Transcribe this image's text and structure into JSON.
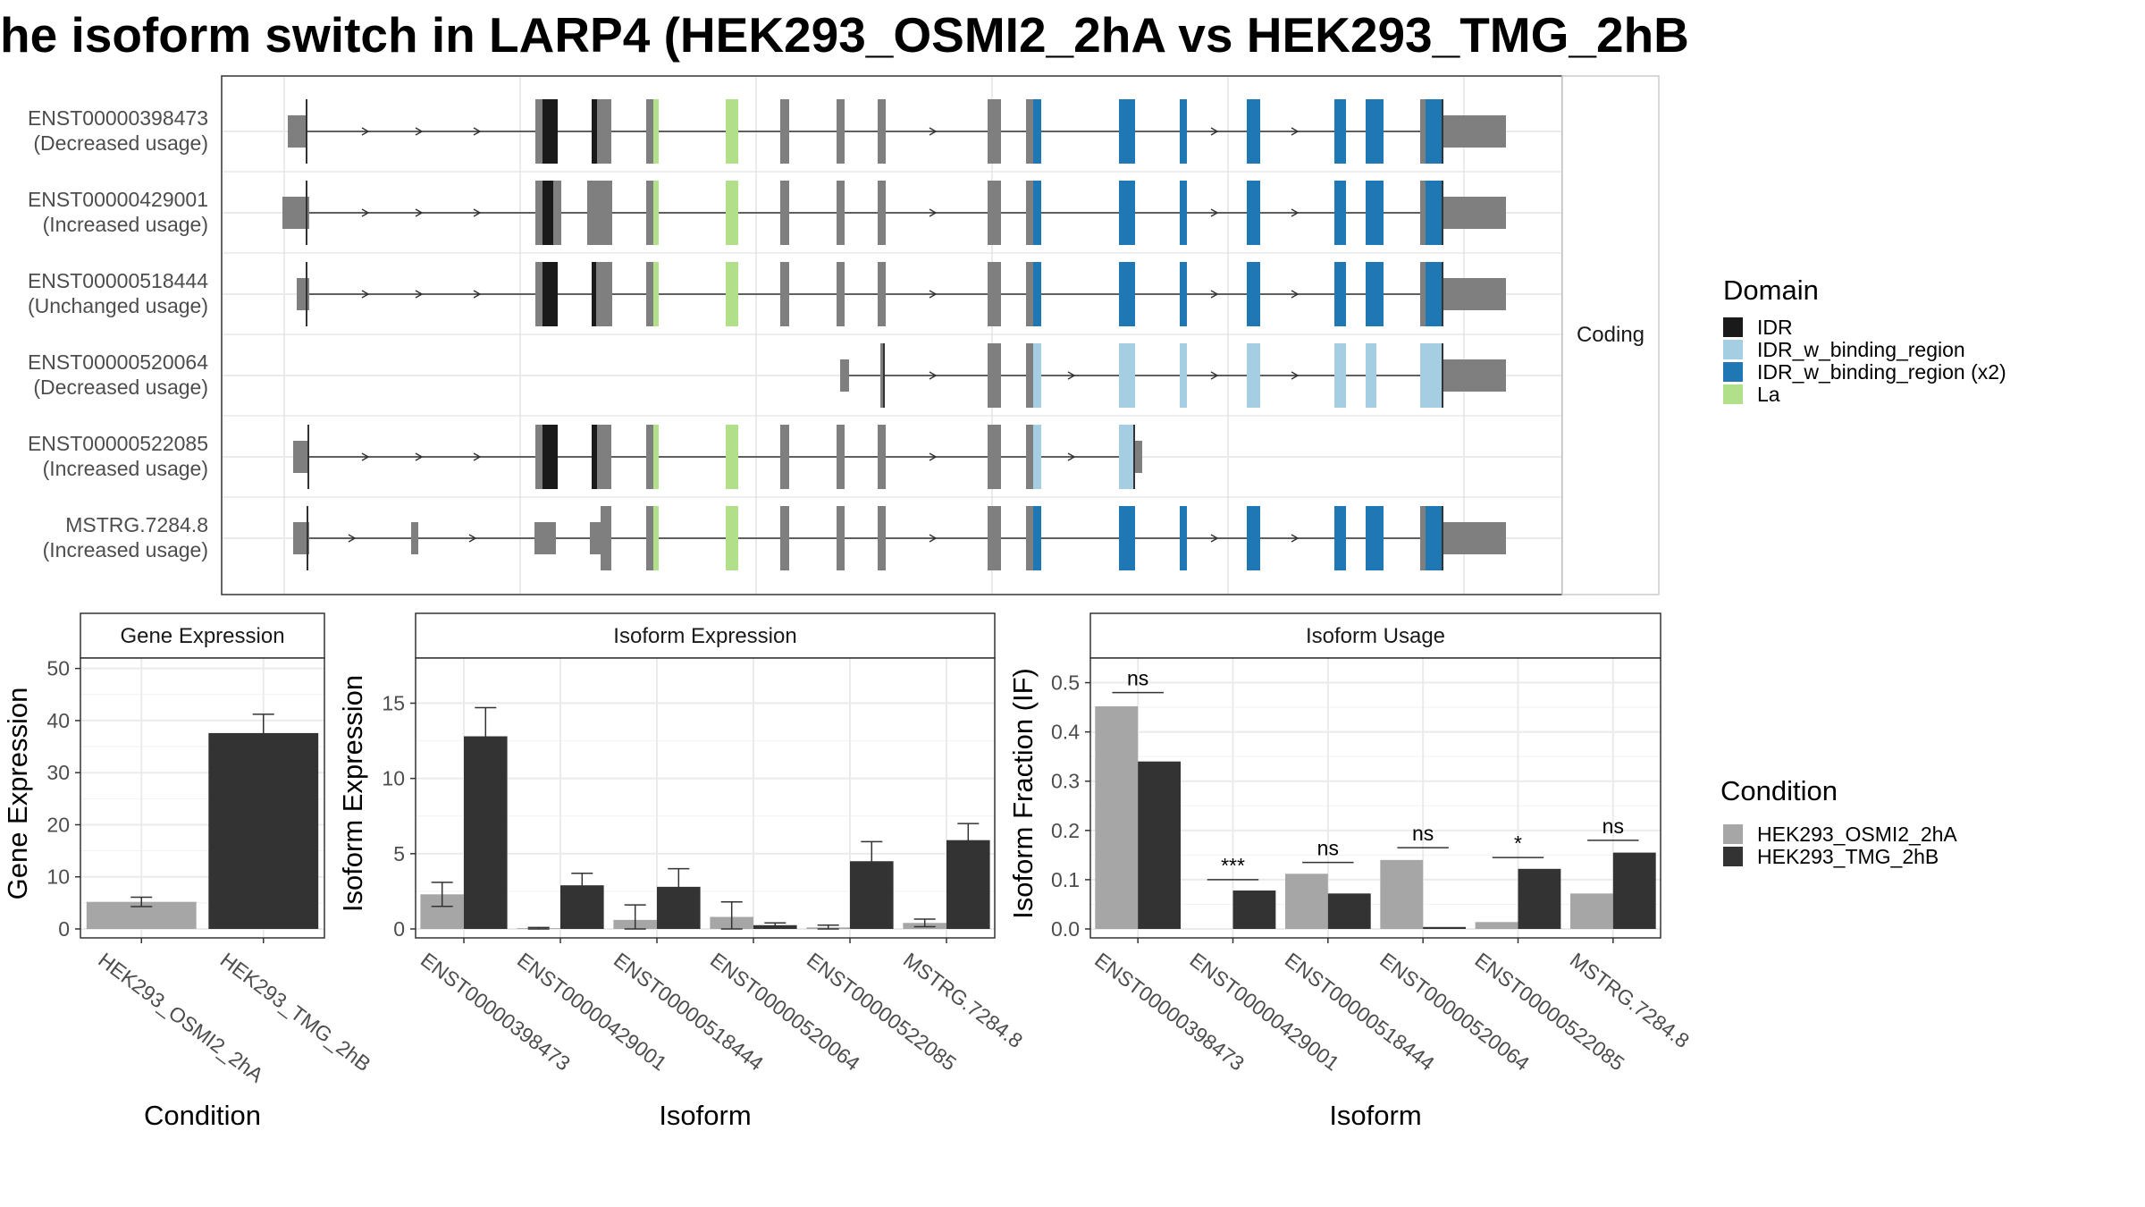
{
  "title": "he isoform switch in LARP4 (HEK293_OSMI2_2hA vs HEK293_TMG_2hB",
  "colors": {
    "utr": "#7f7f7f",
    "IDR": "#1a1a1a",
    "IDR_w_binding_region": "#a6cee3",
    "IDR_w_binding_region_x2": "#1f78b4",
    "La": "#b2df8a",
    "osmi": "#a6a6a6",
    "tmg": "#333333",
    "grid": "#ebebeb"
  },
  "structure": {
    "facet_label": "Coding",
    "transcripts": [
      {
        "id": "ENST00000398473",
        "status": "(Decreased usage)"
      },
      {
        "id": "ENST00000429001",
        "status": "(Increased usage)"
      },
      {
        "id": "ENST00000518444",
        "status": "(Unchanged usage)"
      },
      {
        "id": "ENST00000520064",
        "status": "(Decreased usage)"
      },
      {
        "id": "ENST00000522085",
        "status": "(Increased usage)"
      },
      {
        "id": "MSTRG.7284.8",
        "status": "(Increased usage)"
      }
    ]
  },
  "domain_legend": {
    "title": "Domain",
    "items": [
      {
        "label": "IDR",
        "color_key": "IDR"
      },
      {
        "label": "IDR_w_binding_region",
        "color_key": "IDR_w_binding_region"
      },
      {
        "label": "IDR_w_binding_region (x2)",
        "color_key": "IDR_w_binding_region_x2"
      },
      {
        "label": "La",
        "color_key": "La"
      }
    ]
  },
  "condition_legend": {
    "title": "Condition",
    "items": [
      {
        "label": "HEK293_OSMI2_2hA",
        "color_key": "osmi"
      },
      {
        "label": "HEK293_TMG_2hB",
        "color_key": "tmg"
      }
    ]
  },
  "chart_data": [
    {
      "type": "bar",
      "title": "Gene Expression",
      "xlabel": "Condition",
      "ylabel": "Gene Expression",
      "ylim": [
        0,
        52
      ],
      "yticks": [
        0,
        10,
        20,
        30,
        40,
        50
      ],
      "categories": [
        "HEK293_OSMI2_2hA",
        "HEK293_TMG_2hB"
      ],
      "values": [
        5.2,
        37.6
      ],
      "errors": [
        0.9,
        3.6
      ],
      "grid": true
    },
    {
      "type": "bar",
      "title": "Isoform Expression",
      "xlabel": "Isoform",
      "ylabel": "Isoform Expression",
      "ylim": [
        0,
        18
      ],
      "yticks": [
        0,
        5,
        10,
        15
      ],
      "categories": [
        "ENST00000398473",
        "ENST00000429001",
        "ENST00000518444",
        "ENST00000520064",
        "ENST00000522085",
        "MSTRG.7284.8"
      ],
      "series": [
        {
          "name": "HEK293_OSMI2_2hA",
          "values": [
            2.3,
            0.05,
            0.6,
            0.8,
            0.1,
            0.4
          ],
          "errors": [
            0.8,
            0.05,
            1.0,
            1.0,
            0.15,
            0.25
          ]
        },
        {
          "name": "HEK293_TMG_2hB",
          "values": [
            12.8,
            2.9,
            2.8,
            0.25,
            4.5,
            5.9
          ],
          "errors": [
            1.9,
            0.8,
            1.2,
            0.15,
            1.3,
            1.1
          ]
        }
      ],
      "grid": true
    },
    {
      "type": "bar",
      "title": "Isoform Usage",
      "xlabel": "Isoform",
      "ylabel": "Isoform Fraction (IF)",
      "ylim": [
        0,
        0.55
      ],
      "yticks": [
        0.0,
        0.1,
        0.2,
        0.3,
        0.4,
        0.5
      ],
      "categories": [
        "ENST00000398473",
        "ENST00000429001",
        "ENST00000518444",
        "ENST00000520064",
        "ENST00000522085",
        "MSTRG.7284.8"
      ],
      "series": [
        {
          "name": "HEK293_OSMI2_2hA",
          "values": [
            0.452,
            0.0,
            0.112,
            0.14,
            0.014,
            0.072
          ]
        },
        {
          "name": "HEK293_TMG_2hB",
          "values": [
            0.34,
            0.078,
            0.072,
            0.004,
            0.122,
            0.155
          ]
        }
      ],
      "significance": [
        {
          "label": "ns",
          "y": 0.48
        },
        {
          "label": "***",
          "y": 0.1
        },
        {
          "label": "ns",
          "y": 0.135
        },
        {
          "label": "ns",
          "y": 0.165
        },
        {
          "label": "*",
          "y": 0.145
        },
        {
          "label": "ns",
          "y": 0.18
        }
      ],
      "grid": true
    }
  ]
}
